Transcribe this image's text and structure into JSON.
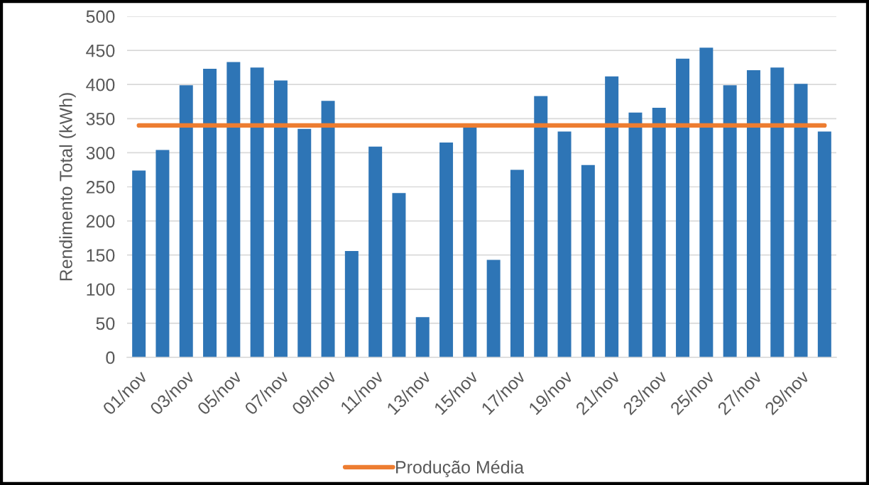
{
  "chart_data": {
    "type": "bar",
    "ylabel": "Rendimento Total (kWh)",
    "categories": [
      "01/nov",
      null,
      "03/nov",
      null,
      "05/nov",
      null,
      "07/nov",
      null,
      "09/nov",
      null,
      "11/nov",
      null,
      "13/nov",
      null,
      "15/nov",
      null,
      "17/nov",
      null,
      "19/nov",
      null,
      "21/nov",
      null,
      "23/nov",
      null,
      "25/nov",
      null,
      "27/nov",
      null,
      "29/nov",
      null
    ],
    "series": [
      {
        "color": "#2e75b6",
        "values": [
          274,
          304,
          399,
          423,
          433,
          425,
          406,
          335,
          376,
          156,
          309,
          241,
          59,
          315,
          338,
          143,
          275,
          383,
          331,
          282,
          412,
          359,
          366,
          438,
          454,
          399,
          421,
          425,
          401,
          331
        ]
      },
      {
        "type": "line",
        "name": "Produção Média",
        "color": "#ed7d31",
        "values": [
          340,
          340,
          340,
          340,
          340,
          340,
          340,
          340,
          340,
          340,
          340,
          340,
          340,
          340,
          340,
          340,
          340,
          340,
          340,
          340,
          340,
          340,
          340,
          340,
          340,
          340,
          340,
          340,
          340,
          340
        ]
      }
    ],
    "ylim": [
      0,
      500
    ],
    "yticks": [
      0,
      50,
      100,
      150,
      200,
      250,
      300,
      350,
      400,
      450,
      500
    ],
    "grid": "y",
    "legend": "bottom"
  }
}
